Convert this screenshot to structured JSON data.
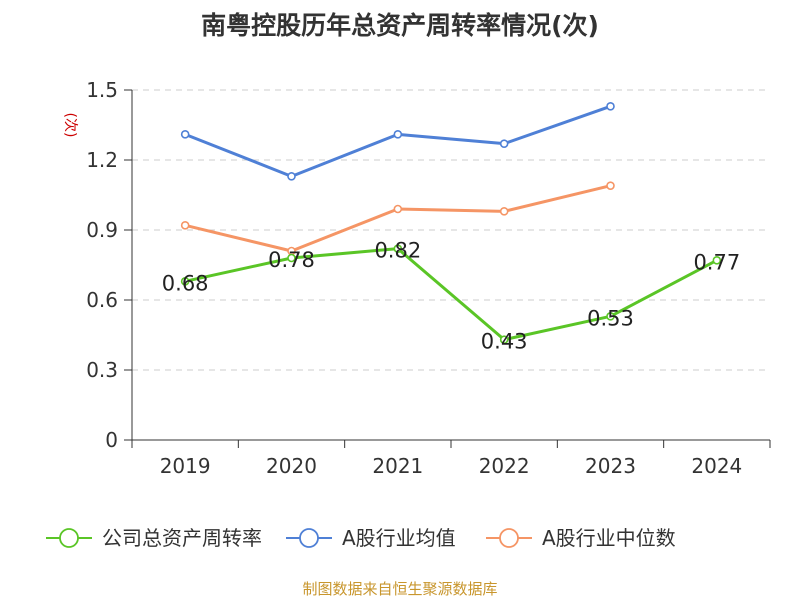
{
  "chart_data": {
    "type": "line",
    "title": "南粤控股历年总资产周转率情况(次)",
    "ylabel": "(次)",
    "categories": [
      "2019",
      "2020",
      "2021",
      "2022",
      "2023",
      "2024"
    ],
    "ylim": [
      0,
      1.5
    ],
    "yticks": [
      "0",
      "0.3",
      "0.6",
      "0.9",
      "1.2",
      "1.5"
    ],
    "grid": true,
    "legend_position": "bottom",
    "series": [
      {
        "name": "公司总资产周转率",
        "color": "#5ac526",
        "values": [
          0.68,
          0.78,
          0.82,
          0.43,
          0.53,
          0.77
        ],
        "labels": [
          "0.68",
          "0.78",
          "0.82",
          "0.43",
          "0.53",
          "0.77"
        ]
      },
      {
        "name": "A股行业均值",
        "color": "#4f80d6",
        "values": [
          1.31,
          1.13,
          1.31,
          1.27,
          1.43,
          null
        ]
      },
      {
        "name": "A股行业中位数",
        "color": "#f59565",
        "values": [
          0.92,
          0.81,
          0.99,
          0.98,
          1.09,
          null
        ]
      }
    ]
  },
  "footer": {
    "source": "制图数据来自恒生聚源数据库"
  }
}
